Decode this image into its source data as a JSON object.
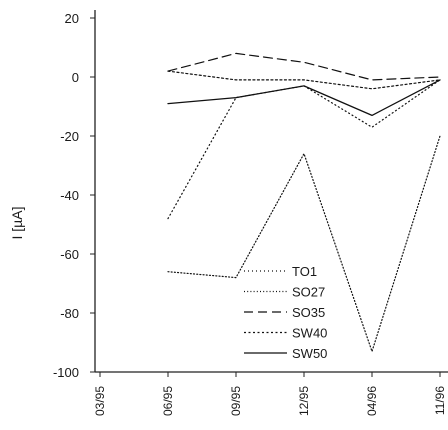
{
  "chart_data": {
    "type": "line",
    "title": "",
    "xlabel": "",
    "ylabel": "I [µA]",
    "categories": [
      "03/95",
      "06/95",
      "09/95",
      "12/95",
      "04/96",
      "11/96"
    ],
    "yticks": [
      20,
      0,
      -20,
      -40,
      -60,
      -80,
      -100
    ],
    "ylim": [
      -100,
      20
    ],
    "grid": false,
    "legend": "bottom-center",
    "series": [
      {
        "name": "TO1",
        "style": "dotted-sparse",
        "points": [
          [
            1,
            -48
          ],
          [
            2,
            -7
          ],
          [
            3,
            -3
          ],
          [
            4,
            -17
          ],
          [
            5,
            -1
          ]
        ]
      },
      {
        "name": "SO27",
        "style": "dotted-dense",
        "points": [
          [
            1,
            -66
          ],
          [
            2,
            -68
          ],
          [
            3,
            -26
          ],
          [
            4,
            -93
          ],
          [
            5,
            -20
          ]
        ]
      },
      {
        "name": "SO35",
        "style": "dashed",
        "points": [
          [
            1,
            2
          ],
          [
            2,
            8
          ],
          [
            3,
            5
          ],
          [
            4,
            -1
          ],
          [
            5,
            0
          ]
        ]
      },
      {
        "name": "SW40",
        "style": "dotted-medium",
        "points": [
          [
            1,
            2
          ],
          [
            2,
            -1
          ],
          [
            3,
            -1
          ],
          [
            4,
            -4
          ],
          [
            5,
            -1
          ]
        ]
      },
      {
        "name": "SW50",
        "style": "solid",
        "points": [
          [
            1,
            -9
          ],
          [
            2,
            -7
          ],
          [
            3,
            -3
          ],
          [
            4,
            -13
          ],
          [
            5,
            -1
          ]
        ]
      }
    ]
  }
}
